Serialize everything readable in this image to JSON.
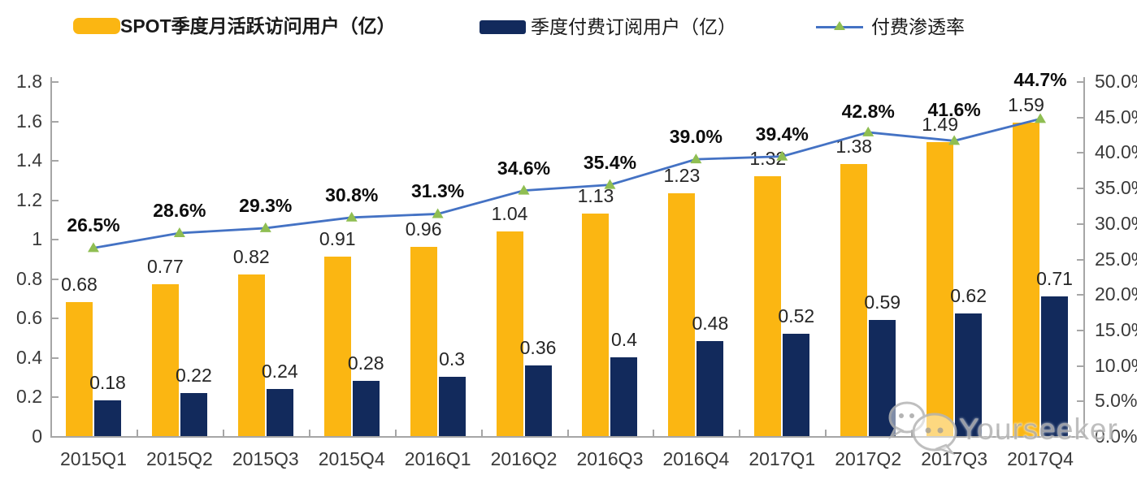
{
  "legend": [
    {
      "label": "SPOT季度月活跃访问用户（亿）",
      "color": "#FBB612",
      "type": "bar",
      "bold": true
    },
    {
      "label": "季度付费订阅用户（亿）",
      "color": "#122A5C",
      "type": "bar",
      "bold": false
    },
    {
      "label": "付费渗透率",
      "type": "line",
      "line_color": "#4472C4",
      "marker_color": "#8FBE52",
      "bold": false
    }
  ],
  "chart_data": {
    "type": "bar",
    "subtype": "clustered-bar-with-line-combo",
    "categories": [
      "2015Q1",
      "2015Q2",
      "2015Q3",
      "2015Q4",
      "2016Q1",
      "2016Q2",
      "2016Q3",
      "2016Q4",
      "2017Q1",
      "2017Q2",
      "2017Q3",
      "2017Q4"
    ],
    "series": [
      {
        "name": "SPOT季度月活跃访问用户（亿）",
        "type": "bar",
        "axis": "left",
        "color": "#FBB612",
        "values": [
          0.68,
          0.77,
          0.82,
          0.91,
          0.96,
          1.04,
          1.13,
          1.23,
          1.32,
          1.38,
          1.49,
          1.59
        ],
        "labels": [
          "0.68",
          "0.77",
          "0.82",
          "0.91",
          "0.96",
          "1.04",
          "1.13",
          "1.23",
          "1.32",
          "1.38",
          "1.49",
          "1.59"
        ]
      },
      {
        "name": "季度付费订阅用户（亿）",
        "type": "bar",
        "axis": "left",
        "color": "#122A5C",
        "values": [
          0.18,
          0.22,
          0.24,
          0.28,
          0.3,
          0.36,
          0.4,
          0.48,
          0.52,
          0.59,
          0.62,
          0.71
        ],
        "labels": [
          "0.18",
          "0.22",
          "0.24",
          "0.28",
          "0.3",
          "0.36",
          "0.4",
          "0.48",
          "0.52",
          "0.59",
          "0.62",
          "0.71"
        ]
      },
      {
        "name": "付费渗透率",
        "type": "line",
        "axis": "right",
        "color": "#4472C4",
        "marker": "triangle",
        "marker_color": "#8FBE52",
        "values": [
          26.5,
          28.6,
          29.3,
          30.8,
          31.3,
          34.6,
          35.4,
          39.0,
          39.4,
          42.8,
          41.6,
          44.7
        ],
        "labels": [
          "26.5%",
          "28.6%",
          "29.3%",
          "30.8%",
          "31.3%",
          "34.6%",
          "35.4%",
          "39.0%",
          "39.4%",
          "42.8%",
          "41.6%",
          "44.7%"
        ]
      }
    ],
    "left_axis": {
      "min": 0,
      "max": 1.8,
      "ticks": [
        "0",
        "0.2",
        "0.4",
        "0.6",
        "0.8",
        "1",
        "1.2",
        "1.4",
        "1.6",
        "1.8"
      ]
    },
    "right_axis": {
      "min": 0,
      "max": 50,
      "ticks": [
        "0.0%",
        "5.0%",
        "10.0%",
        "15.0%",
        "20.0%",
        "25.0%",
        "30.0%",
        "35.0%",
        "40.0%",
        "45.0%",
        "50.0%"
      ]
    },
    "grid": false,
    "legend_position": "top",
    "title": "",
    "xlabel": "",
    "ylabel": ""
  },
  "watermark": {
    "text": "Yourseeker",
    "icon": "wechat-icon"
  }
}
